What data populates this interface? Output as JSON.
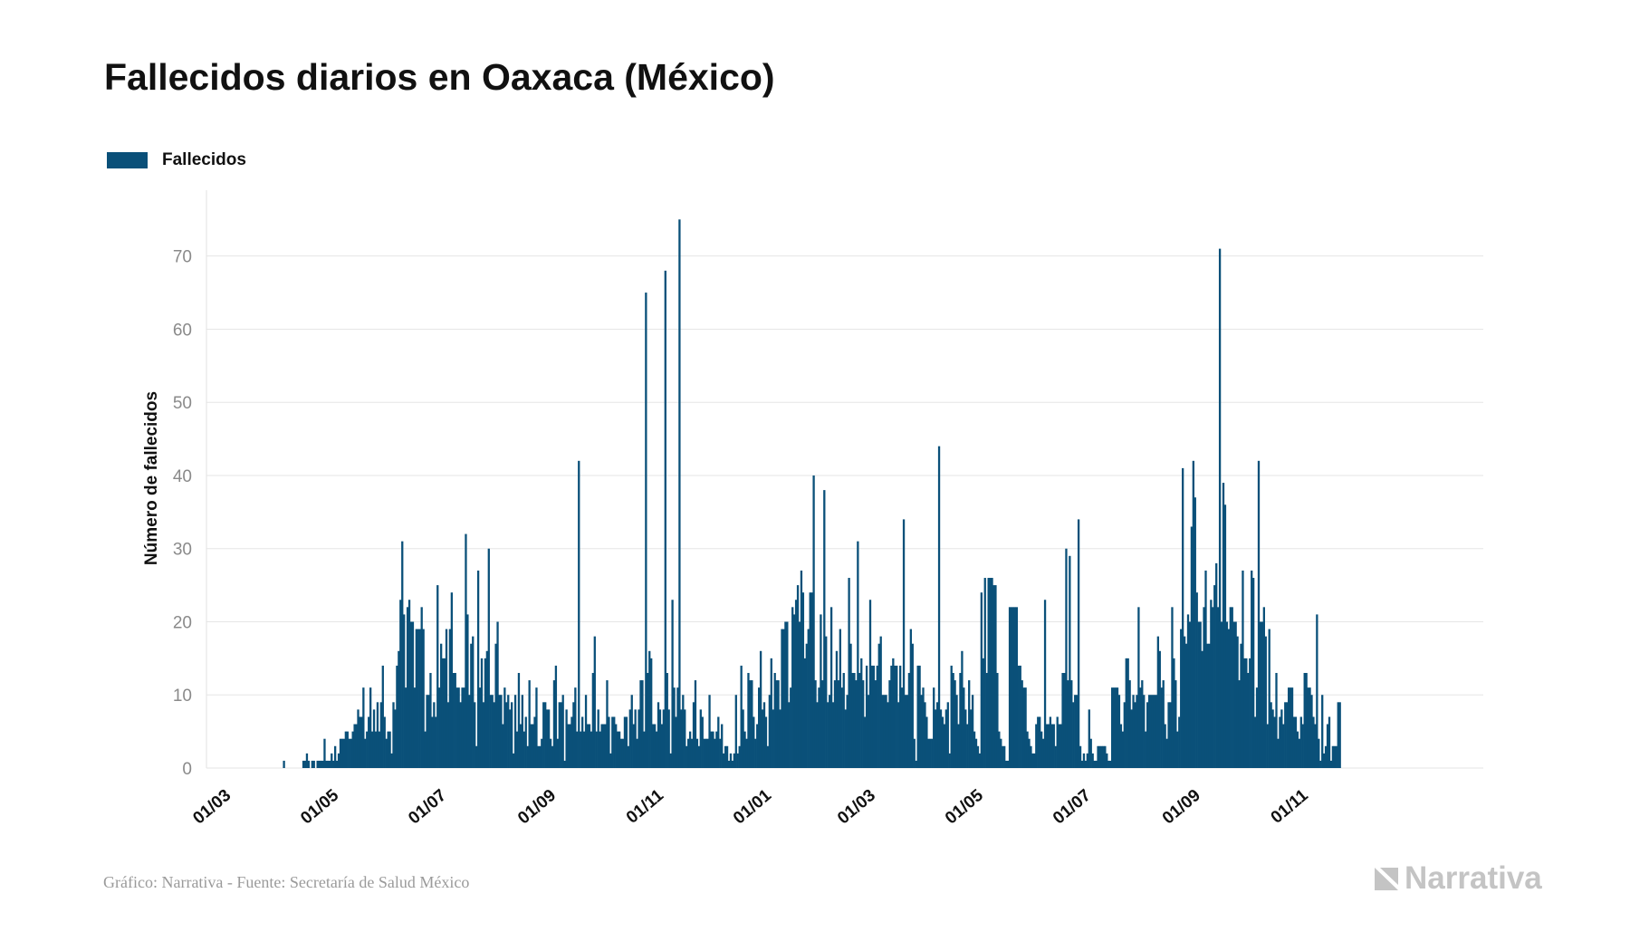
{
  "title": "Fallecidos diarios en Oaxaca (México)",
  "footer": {
    "source": "Gráfico: Narrativa - Fuente: Secretaría de Salud México",
    "brand": "Narrativa"
  },
  "colors": {
    "bar": "#0a5079",
    "grid": "#e6e6e6",
    "axis_text": "#8a8a8a",
    "label": "#111111"
  },
  "chart_data": {
    "type": "bar",
    "title": "Fallecidos diarios en Oaxaca (México)",
    "ylabel": "Número de fallecidos",
    "xlabel": "",
    "ylim": [
      0,
      79
    ],
    "yticks": [
      0,
      10,
      20,
      30,
      40,
      50,
      60,
      70
    ],
    "xticks": [
      {
        "day": 0,
        "label": "01/03"
      },
      {
        "day": 61,
        "label": "01/05"
      },
      {
        "day": 122,
        "label": "01/07"
      },
      {
        "day": 184,
        "label": "01/09"
      },
      {
        "day": 245,
        "label": "01/11"
      },
      {
        "day": 306,
        "label": "01/01"
      },
      {
        "day": 365,
        "label": "01/03"
      },
      {
        "day": 426,
        "label": "01/05"
      },
      {
        "day": 487,
        "label": "01/07"
      },
      {
        "day": 549,
        "label": "01/09"
      },
      {
        "day": 610,
        "label": "01/11"
      }
    ],
    "legend": [
      "Fallecidos"
    ],
    "series": [
      {
        "name": "Fallecidos",
        "start_date": "2020-03-01",
        "values": [
          0,
          0,
          0,
          0,
          0,
          0,
          0,
          0,
          0,
          0,
          0,
          0,
          0,
          0,
          0,
          0,
          0,
          0,
          0,
          0,
          0,
          0,
          0,
          0,
          0,
          0,
          0,
          0,
          0,
          0,
          0,
          1,
          0,
          0,
          0,
          0,
          0,
          0,
          0,
          0,
          0,
          0,
          1,
          1,
          2,
          1,
          0,
          1,
          1,
          0,
          1,
          1,
          1,
          1,
          4,
          1,
          1,
          1,
          2,
          1,
          3,
          1,
          2,
          4,
          4,
          4,
          5,
          5,
          4,
          4,
          5,
          6,
          6,
          8,
          7,
          7,
          11,
          4,
          5,
          7,
          11,
          5,
          8,
          5,
          9,
          5,
          9,
          14,
          7,
          4,
          5,
          5,
          2,
          9,
          8,
          14,
          16,
          23,
          31,
          21,
          11,
          22,
          23,
          20,
          20,
          11,
          19,
          19,
          19,
          22,
          19,
          5,
          10,
          10,
          13,
          7,
          9,
          7,
          25,
          11,
          17,
          15,
          15,
          19,
          9,
          19,
          24,
          13,
          13,
          11,
          11,
          9,
          11,
          11,
          32,
          21,
          10,
          17,
          18,
          9,
          3,
          27,
          11,
          15,
          9,
          15,
          16,
          30,
          10,
          10,
          9,
          17,
          20,
          10,
          10,
          6,
          11,
          9,
          10,
          8,
          9,
          2,
          10,
          5,
          13,
          6,
          10,
          5,
          7,
          3,
          12,
          6,
          6,
          7,
          11,
          3,
          3,
          4,
          9,
          9,
          8,
          8,
          4,
          3,
          12,
          14,
          4,
          9,
          9,
          10,
          1,
          8,
          6,
          6,
          7,
          9,
          11,
          5,
          42,
          5,
          7,
          5,
          10,
          6,
          6,
          5,
          13,
          18,
          5,
          8,
          5,
          6,
          6,
          6,
          12,
          7,
          2,
          7,
          7,
          6,
          5,
          5,
          4,
          4,
          7,
          7,
          3,
          8,
          10,
          6,
          8,
          4,
          8,
          12,
          12,
          5,
          65,
          13,
          16,
          15,
          6,
          6,
          5,
          9,
          8,
          6,
          8,
          68,
          13,
          8,
          2,
          23,
          11,
          7,
          11,
          75,
          8,
          10,
          8,
          3,
          4,
          5,
          4,
          9,
          12,
          4,
          3,
          8,
          7,
          4,
          4,
          4,
          10,
          5,
          5,
          4,
          5,
          7,
          4,
          6,
          2,
          3,
          3,
          1,
          2,
          1,
          2,
          10,
          2,
          3,
          14,
          8,
          5,
          4,
          13,
          12,
          12,
          7,
          4,
          6,
          11,
          16,
          8,
          9,
          7,
          3,
          10,
          15,
          8,
          13,
          12,
          12,
          8,
          19,
          19,
          20,
          20,
          9,
          11,
          22,
          21,
          23,
          25,
          20,
          27,
          24,
          15,
          17,
          19,
          24,
          24,
          40,
          12,
          9,
          11,
          21,
          12,
          38,
          18,
          9,
          10,
          22,
          9,
          12,
          16,
          12,
          19,
          11,
          13,
          8,
          10,
          26,
          17,
          13,
          13,
          12,
          31,
          13,
          15,
          12,
          7,
          14,
          10,
          23,
          14,
          14,
          12,
          14,
          17,
          18,
          10,
          10,
          10,
          9,
          12,
          14,
          15,
          14,
          14,
          9,
          14,
          11,
          34,
          10,
          10,
          13,
          19,
          17,
          4,
          1,
          14,
          14,
          10,
          11,
          9,
          7,
          4,
          4,
          4,
          11,
          8,
          9,
          44,
          8,
          7,
          6,
          8,
          9,
          2,
          14,
          13,
          12,
          10,
          6,
          13,
          16,
          11,
          8,
          6,
          12,
          8,
          10,
          5,
          4,
          3,
          2,
          24,
          15,
          26,
          13,
          26,
          26,
          26,
          25,
          25,
          13,
          5,
          4,
          3,
          3,
          1,
          1,
          22,
          22,
          22,
          22,
          22,
          14,
          14,
          12,
          11,
          11,
          5,
          4,
          3,
          2,
          2,
          6,
          7,
          7,
          5,
          4,
          23,
          6,
          6,
          7,
          6,
          6,
          3,
          7,
          6,
          6,
          13,
          13,
          30,
          12,
          29,
          12,
          9,
          10,
          10,
          34,
          3,
          1,
          2,
          1,
          2,
          8,
          4,
          2,
          1,
          1,
          3,
          3,
          3,
          3,
          3,
          2,
          1,
          1,
          11,
          11,
          11,
          11,
          10,
          6,
          5,
          9,
          15,
          15,
          12,
          8,
          10,
          9,
          10,
          22,
          11,
          12,
          10,
          5,
          9,
          10,
          10,
          10,
          10,
          10,
          18,
          16,
          11,
          12,
          6,
          4,
          9,
          9,
          22,
          15,
          12,
          5,
          7,
          19,
          41,
          18,
          17,
          21,
          20,
          33,
          42,
          37,
          24,
          20,
          20,
          16,
          22,
          27,
          17,
          17,
          23,
          22,
          25,
          28,
          22,
          71,
          20,
          39,
          36,
          20,
          19,
          22,
          22,
          20,
          20,
          18,
          12,
          17,
          27,
          15,
          15,
          13,
          15,
          27,
          26,
          7,
          11,
          42,
          20,
          20,
          22,
          18,
          6,
          19,
          9,
          8,
          7,
          13,
          4,
          7,
          8,
          6,
          9,
          9,
          11,
          11,
          11,
          7,
          7,
          5,
          4,
          7,
          6,
          13,
          13,
          11,
          11,
          10,
          7,
          6,
          21,
          4,
          1,
          10,
          2,
          3,
          6,
          7,
          1,
          3,
          3,
          3,
          9,
          9
        ]
      }
    ]
  }
}
